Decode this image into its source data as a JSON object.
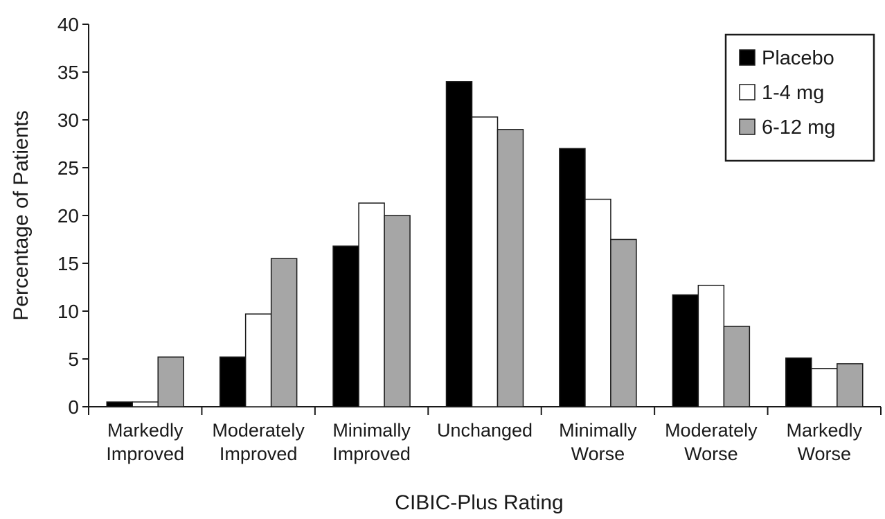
{
  "chart_data": {
    "type": "bar",
    "title": "",
    "xlabel": "CIBIC-Plus Rating",
    "ylabel": "Percentage of Patients",
    "ylim": [
      0,
      40
    ],
    "yticks": [
      0,
      5,
      10,
      15,
      20,
      25,
      30,
      35,
      40
    ],
    "grid": false,
    "legend_position": "top-right",
    "categories": [
      [
        "Markedly",
        "Improved"
      ],
      [
        "Moderately",
        "Improved"
      ],
      [
        "Minimally",
        "Improved"
      ],
      [
        "Unchanged"
      ],
      [
        "Minimally",
        "Worse"
      ],
      [
        "Moderately",
        "Worse"
      ],
      [
        "Markedly",
        "Worse"
      ]
    ],
    "series": [
      {
        "name": "Placebo",
        "color": "#000000",
        "values": [
          0.5,
          5.2,
          16.8,
          34.0,
          27.0,
          11.7,
          5.1
        ]
      },
      {
        "name": "1-4 mg",
        "color": "#ffffff",
        "values": [
          0.5,
          9.7,
          21.3,
          30.3,
          21.7,
          12.7,
          4.0
        ]
      },
      {
        "name": "6-12 mg",
        "color": "#a6a6a6",
        "values": [
          5.2,
          15.5,
          20.0,
          29.0,
          17.5,
          8.4,
          4.5
        ]
      }
    ]
  }
}
